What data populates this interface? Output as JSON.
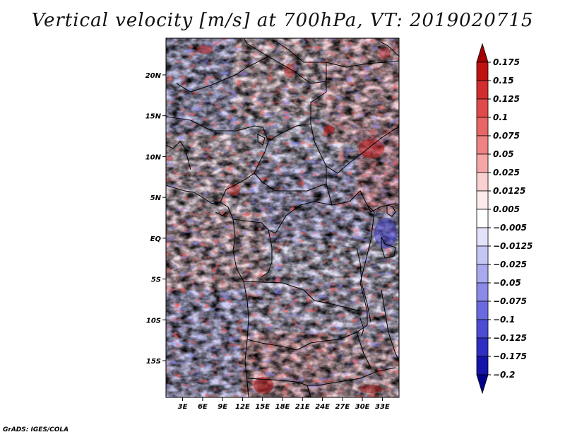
{
  "title": "Vertical velocity [m/s] at 700hPa, VT: 2019020715",
  "credit": "GrADS: IGES/COLA",
  "map": {
    "lat_labels": [
      "20N",
      "15N",
      "10N",
      "5N",
      "EQ",
      "5S",
      "10S",
      "15S"
    ],
    "lon_labels": [
      "3E",
      "6E",
      "9E",
      "12E",
      "15E",
      "18E",
      "21E",
      "24E",
      "27E",
      "30E",
      "33E"
    ],
    "lat_range": [
      -19.5,
      24.5
    ],
    "lon_range": [
      0.5,
      35.5
    ]
  },
  "colorbar": {
    "levels": [
      "0.175",
      "0.15",
      "0.125",
      "0.1",
      "0.075",
      "0.05",
      "0.025",
      "0.0125",
      "0.005",
      "-0.005",
      "-0.0125",
      "-0.025",
      "-0.05",
      "-0.075",
      "-0.1",
      "-0.125",
      "-0.175",
      "-0.2"
    ],
    "colors": [
      "#a40000",
      "#c11212",
      "#d42d2d",
      "#e04a4a",
      "#e86666",
      "#ef8383",
      "#f5a7a7",
      "#fad0d0",
      "#fdeaea",
      "#ffffff",
      "#e2e2fb",
      "#c6c6f5",
      "#a9a9ee",
      "#8a8ae8",
      "#6a6ae0",
      "#4c4cd4",
      "#2e2ec2",
      "#1414a8",
      "#00008a"
    ]
  }
}
